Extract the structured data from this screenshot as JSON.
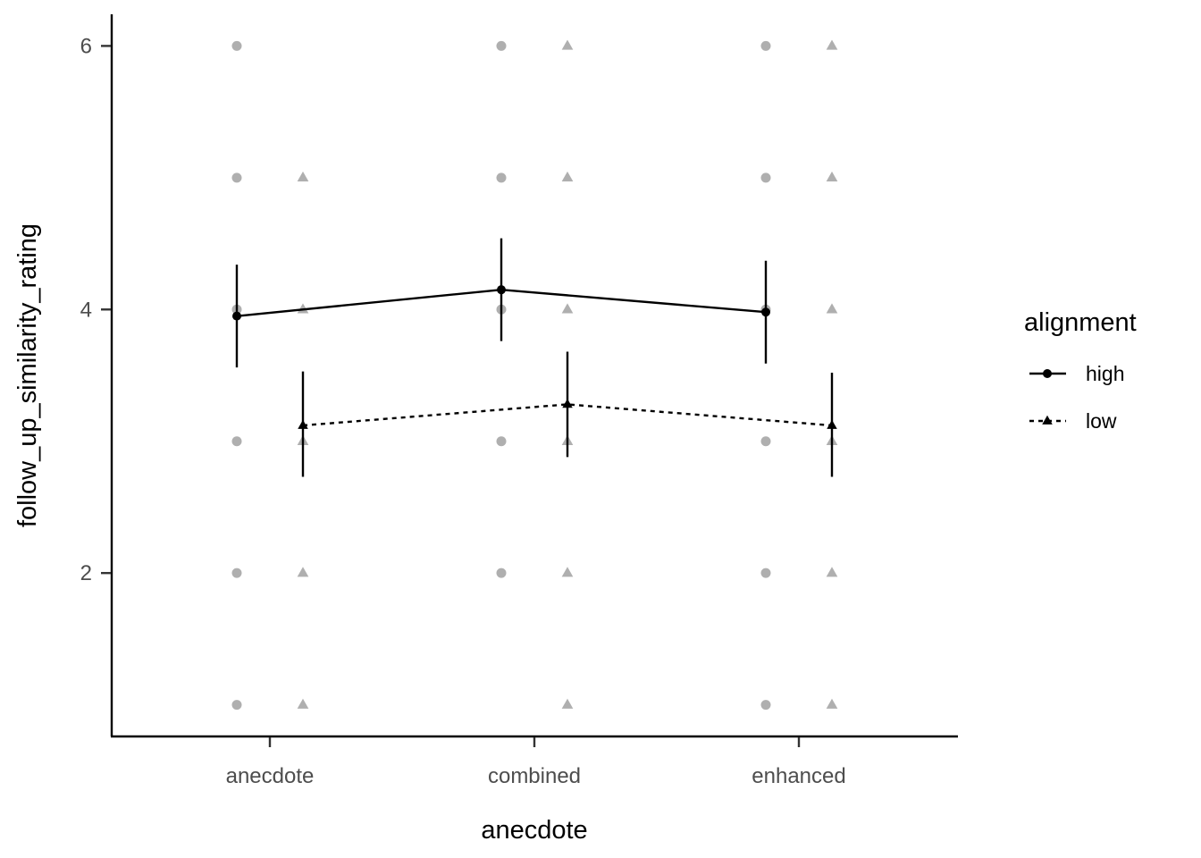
{
  "chart_data": {
    "type": "line",
    "title": "",
    "xlabel": "anecdote",
    "ylabel": "follow_up_similarity_rating",
    "categories": [
      "anecdote",
      "combined",
      "enhanced"
    ],
    "yticks": [
      2,
      4,
      6
    ],
    "ylim": [
      0.76,
      6.24
    ],
    "grid": false,
    "legend": {
      "title": "alignment",
      "placement": "right",
      "entries": [
        "high",
        "low"
      ]
    },
    "series": [
      {
        "name": "high",
        "marker": "circle",
        "line_style": "solid",
        "color": "#000000",
        "means": [
          3.95,
          4.15,
          3.98
        ],
        "ci_low": [
          3.56,
          3.76,
          3.59
        ],
        "ci_high": [
          4.34,
          4.54,
          4.37
        ],
        "raw_values": [
          [
            1,
            2,
            3,
            4,
            5,
            6
          ],
          [
            2,
            3,
            4,
            5,
            6
          ],
          [
            1,
            2,
            3,
            4,
            5,
            6
          ]
        ]
      },
      {
        "name": "low",
        "marker": "triangle",
        "line_style": "dotted",
        "color": "#000000",
        "means": [
          3.12,
          3.28,
          3.12
        ],
        "ci_low": [
          2.73,
          2.88,
          2.73
        ],
        "ci_high": [
          3.53,
          3.68,
          3.52
        ],
        "raw_values": [
          [
            1,
            2,
            3,
            4,
            5
          ],
          [
            1,
            2,
            3,
            4,
            5,
            6
          ],
          [
            1,
            2,
            3,
            4,
            5,
            6
          ]
        ]
      }
    ]
  }
}
